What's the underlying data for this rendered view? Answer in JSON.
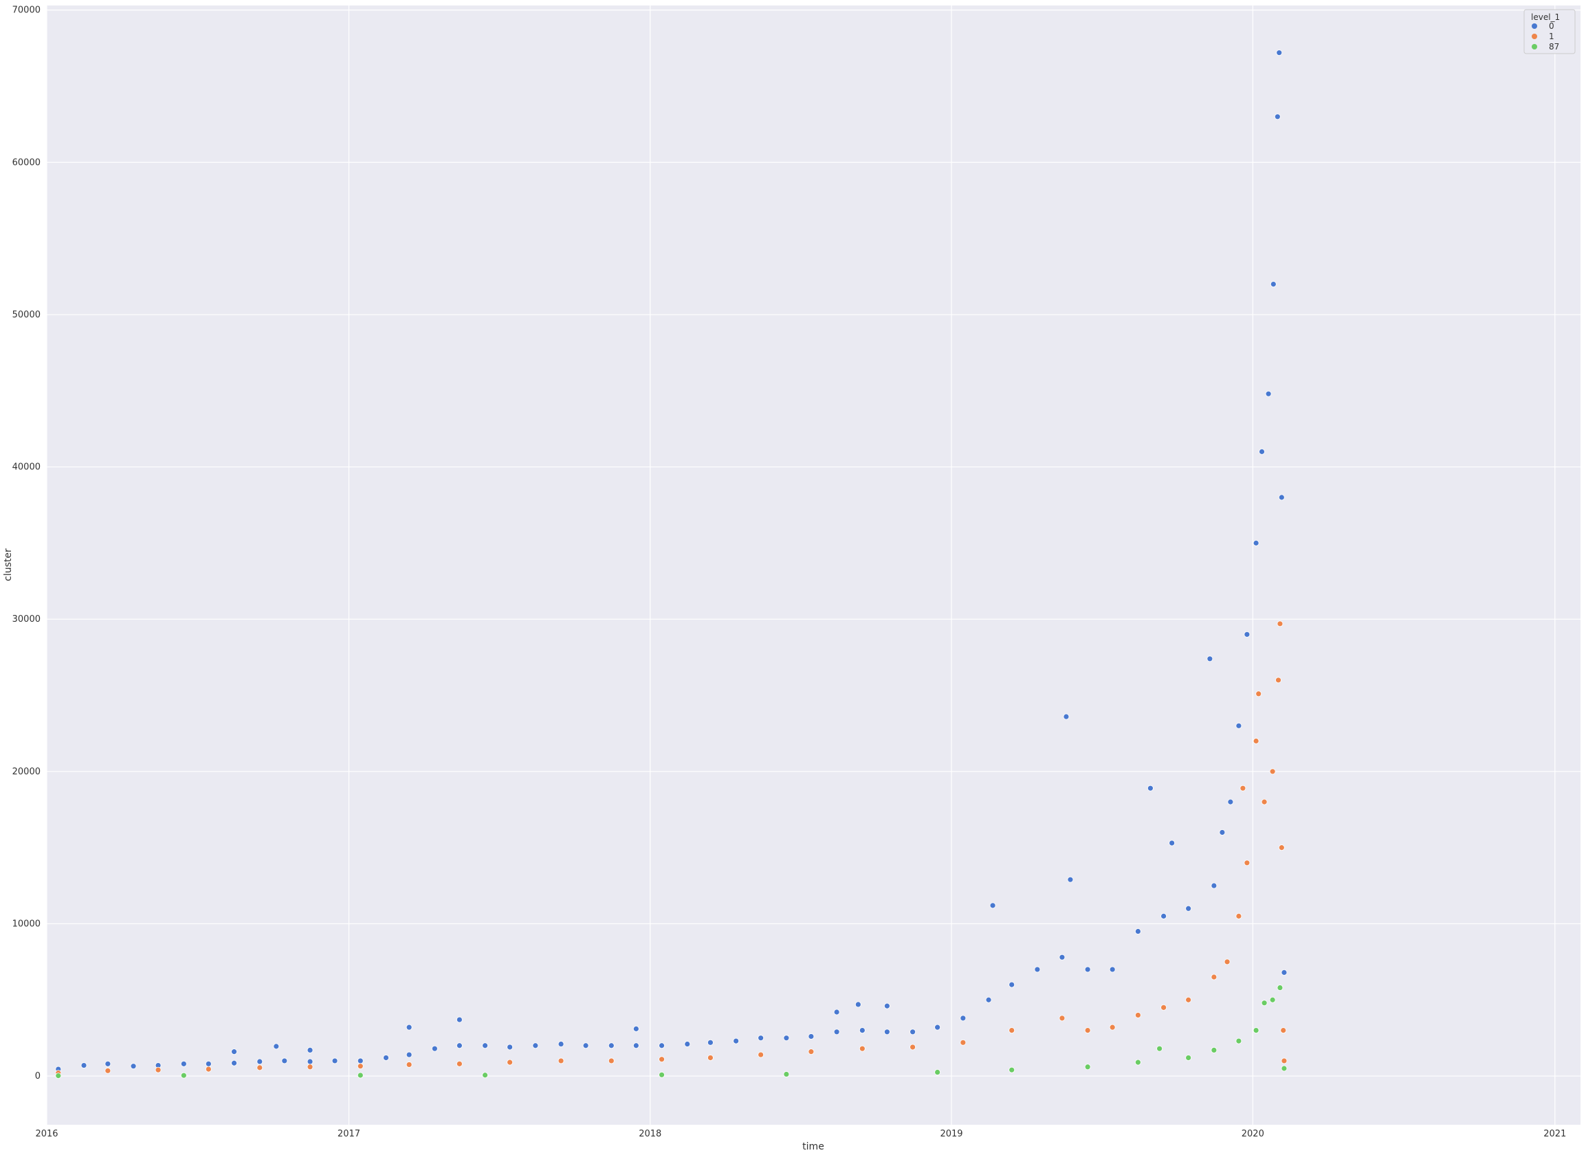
{
  "chart_data": {
    "type": "scatter",
    "title": "",
    "xlabel": "time",
    "ylabel": "cluster",
    "x_axis_kind": "date",
    "xlim": [
      "2016-01-01",
      "2021-02-01"
    ],
    "ylim": [
      -3200,
      70300
    ],
    "x_ticks": [
      "2016-01-01",
      "2017-01-01",
      "2018-01-01",
      "2019-01-01",
      "2020-01-01",
      "2021-01-01"
    ],
    "x_tick_labels": [
      "2016",
      "2017",
      "2018",
      "2019",
      "2020",
      "2021"
    ],
    "y_ticks": [
      0,
      10000,
      20000,
      30000,
      40000,
      50000,
      60000,
      70000
    ],
    "y_tick_labels": [
      "0",
      "10000",
      "20000",
      "30000",
      "40000",
      "50000",
      "60000",
      "70000"
    ],
    "grid": true,
    "legend": {
      "title": "level_1",
      "position": "top-right",
      "entries": [
        "0",
        "1",
        "87"
      ]
    },
    "series": [
      {
        "name": "0",
        "color": "#4878d0",
        "points": [
          [
            "2016-01-15",
            450
          ],
          [
            "2016-02-15",
            700
          ],
          [
            "2016-03-15",
            800
          ],
          [
            "2016-04-15",
            650
          ],
          [
            "2016-05-15",
            700
          ],
          [
            "2016-06-15",
            800
          ],
          [
            "2016-07-15",
            800
          ],
          [
            "2016-08-15",
            850
          ],
          [
            "2016-09-15",
            950
          ],
          [
            "2016-10-15",
            1000
          ],
          [
            "2016-11-15",
            950
          ],
          [
            "2016-12-15",
            1000
          ],
          [
            "2017-01-15",
            1000
          ],
          [
            "2017-02-15",
            1200
          ],
          [
            "2017-03-15",
            1400
          ],
          [
            "2017-04-15",
            1800
          ],
          [
            "2017-05-15",
            2000
          ],
          [
            "2017-06-15",
            2000
          ],
          [
            "2017-07-15",
            1900
          ],
          [
            "2017-08-15",
            2000
          ],
          [
            "2017-09-15",
            2100
          ],
          [
            "2017-10-15",
            2000
          ],
          [
            "2017-11-15",
            2000
          ],
          [
            "2017-12-15",
            2000
          ],
          [
            "2018-01-15",
            2000
          ],
          [
            "2018-02-15",
            2100
          ],
          [
            "2018-03-15",
            2200
          ],
          [
            "2018-04-15",
            2300
          ],
          [
            "2018-05-15",
            2500
          ],
          [
            "2018-06-15",
            2500
          ],
          [
            "2018-07-15",
            2600
          ],
          [
            "2018-08-15",
            2900
          ],
          [
            "2018-09-15",
            3000
          ],
          [
            "2018-10-15",
            2900
          ],
          [
            "2018-11-15",
            2900
          ],
          [
            "2018-12-15",
            3200
          ],
          [
            "2019-01-15",
            3800
          ],
          [
            "2019-02-15",
            5000
          ],
          [
            "2019-03-15",
            6000
          ],
          [
            "2019-04-15",
            7000
          ],
          [
            "2019-05-15",
            7800
          ],
          [
            "2019-06-15",
            7000
          ],
          [
            "2019-07-15",
            7000
          ],
          [
            "2019-08-15",
            9500
          ],
          [
            "2019-09-15",
            10500
          ],
          [
            "2019-10-15",
            11000
          ],
          [
            "2019-11-15",
            12500
          ],
          [
            "2019-11-25",
            16000
          ],
          [
            "2019-12-05",
            18000
          ],
          [
            "2019-12-15",
            23000
          ],
          [
            "2019-12-25",
            29000
          ],
          [
            "2020-01-05",
            35000
          ],
          [
            "2020-01-12",
            41000
          ],
          [
            "2020-01-20",
            44800
          ],
          [
            "2020-01-26",
            52000
          ],
          [
            "2020-01-31",
            63000
          ],
          [
            "2020-02-02",
            67200
          ],
          [
            "2020-02-05",
            38000
          ],
          [
            "2020-02-08",
            6800
          ],
          [
            "2016-08-15",
            1600
          ],
          [
            "2016-10-05",
            1950
          ],
          [
            "2016-11-15",
            1700
          ],
          [
            "2017-03-15",
            3200
          ],
          [
            "2017-05-15",
            3700
          ],
          [
            "2017-12-15",
            3100
          ],
          [
            "2018-08-15",
            4200
          ],
          [
            "2018-09-10",
            4700
          ],
          [
            "2018-10-15",
            4600
          ],
          [
            "2019-02-20",
            11200
          ],
          [
            "2019-05-20",
            23600
          ],
          [
            "2019-05-25",
            12900
          ],
          [
            "2019-08-30",
            18900
          ],
          [
            "2019-09-25",
            15300
          ],
          [
            "2019-11-10",
            27400
          ]
        ]
      },
      {
        "name": "1",
        "color": "#ee854a",
        "points": [
          [
            "2016-01-15",
            200
          ],
          [
            "2016-03-15",
            350
          ],
          [
            "2016-05-15",
            400
          ],
          [
            "2016-07-15",
            450
          ],
          [
            "2016-09-15",
            550
          ],
          [
            "2016-11-15",
            600
          ],
          [
            "2017-01-15",
            650
          ],
          [
            "2017-03-15",
            750
          ],
          [
            "2017-05-15",
            800
          ],
          [
            "2017-07-15",
            900
          ],
          [
            "2017-09-15",
            1000
          ],
          [
            "2017-11-15",
            1000
          ],
          [
            "2018-01-15",
            1100
          ],
          [
            "2018-03-15",
            1200
          ],
          [
            "2018-05-15",
            1400
          ],
          [
            "2018-07-15",
            1600
          ],
          [
            "2018-09-15",
            1800
          ],
          [
            "2018-11-15",
            1900
          ],
          [
            "2019-01-15",
            2200
          ],
          [
            "2019-03-15",
            3000
          ],
          [
            "2019-05-15",
            3800
          ],
          [
            "2019-06-15",
            3000
          ],
          [
            "2019-07-15",
            3200
          ],
          [
            "2019-08-15",
            4000
          ],
          [
            "2019-09-15",
            4500
          ],
          [
            "2019-10-15",
            5000
          ],
          [
            "2019-11-15",
            6500
          ],
          [
            "2019-12-01",
            7500
          ],
          [
            "2019-12-15",
            10500
          ],
          [
            "2019-12-25",
            14000
          ],
          [
            "2020-01-05",
            22000
          ],
          [
            "2020-01-15",
            18000
          ],
          [
            "2020-01-25",
            20000
          ],
          [
            "2020-02-01",
            26000
          ],
          [
            "2020-02-03",
            29700
          ],
          [
            "2020-02-05",
            15000
          ],
          [
            "2020-02-07",
            3000
          ],
          [
            "2020-02-08",
            1000
          ],
          [
            "2019-12-20",
            18900
          ],
          [
            "2020-01-08",
            25100
          ]
        ]
      },
      {
        "name": "87",
        "color": "#6acc64",
        "points": [
          [
            "2016-01-15",
            20
          ],
          [
            "2016-06-15",
            40
          ],
          [
            "2017-01-15",
            50
          ],
          [
            "2017-06-15",
            60
          ],
          [
            "2018-01-15",
            80
          ],
          [
            "2018-06-15",
            120
          ],
          [
            "2018-12-15",
            250
          ],
          [
            "2019-03-15",
            400
          ],
          [
            "2019-06-15",
            600
          ],
          [
            "2019-08-15",
            900
          ],
          [
            "2019-10-15",
            1200
          ],
          [
            "2019-11-15",
            1700
          ],
          [
            "2019-12-15",
            2300
          ],
          [
            "2020-01-05",
            3000
          ],
          [
            "2020-01-15",
            4800
          ],
          [
            "2020-01-25",
            5000
          ],
          [
            "2020-02-03",
            5800
          ],
          [
            "2020-02-08",
            500
          ],
          [
            "2019-09-10",
            1800
          ]
        ]
      }
    ]
  }
}
